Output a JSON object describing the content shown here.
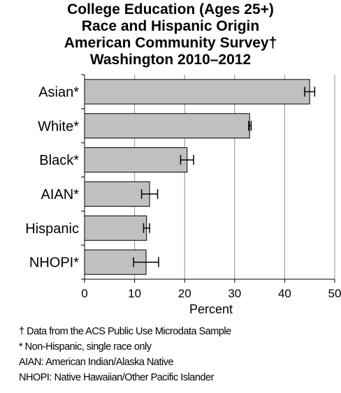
{
  "title_lines": [
    "College Education  (Ages 25+)",
    "Race and Hispanic Origin",
    "American Community Survey†",
    "Washington 2010–2012"
  ],
  "chart_data": {
    "type": "bar",
    "orientation": "horizontal",
    "title": "College Education  (Ages 25+) Race and Hispanic Origin American Community Survey† Washington 2010–2012",
    "categories": [
      "Asian*",
      "White*",
      "Black*",
      "AIAN*",
      "Hispanic",
      "NHOPI*"
    ],
    "series": [
      {
        "values": [
          45.0,
          33.0,
          20.5,
          13.0,
          12.4,
          12.3
        ],
        "error_low": [
          44.0,
          32.8,
          19.2,
          11.4,
          11.8,
          9.8
        ],
        "error_high": [
          46.0,
          33.3,
          21.8,
          14.6,
          13.0,
          14.8
        ]
      }
    ],
    "xlabel": "Percent",
    "ylabel": "",
    "xlim": [
      0,
      50
    ],
    "xticks": [
      0,
      10,
      20,
      30,
      40,
      50
    ],
    "grid": true,
    "bar_color": "#c0c0c0",
    "bar_edge_color": "#000000"
  },
  "footnotes": [
    "† Data from the ACS Public Use Microdata Sample",
    "* Non-Hispanic, single race only",
    "AIAN: American Indian/Alaska Native",
    "NHOPI: Native Hawaiian/Other Pacific Islander"
  ]
}
